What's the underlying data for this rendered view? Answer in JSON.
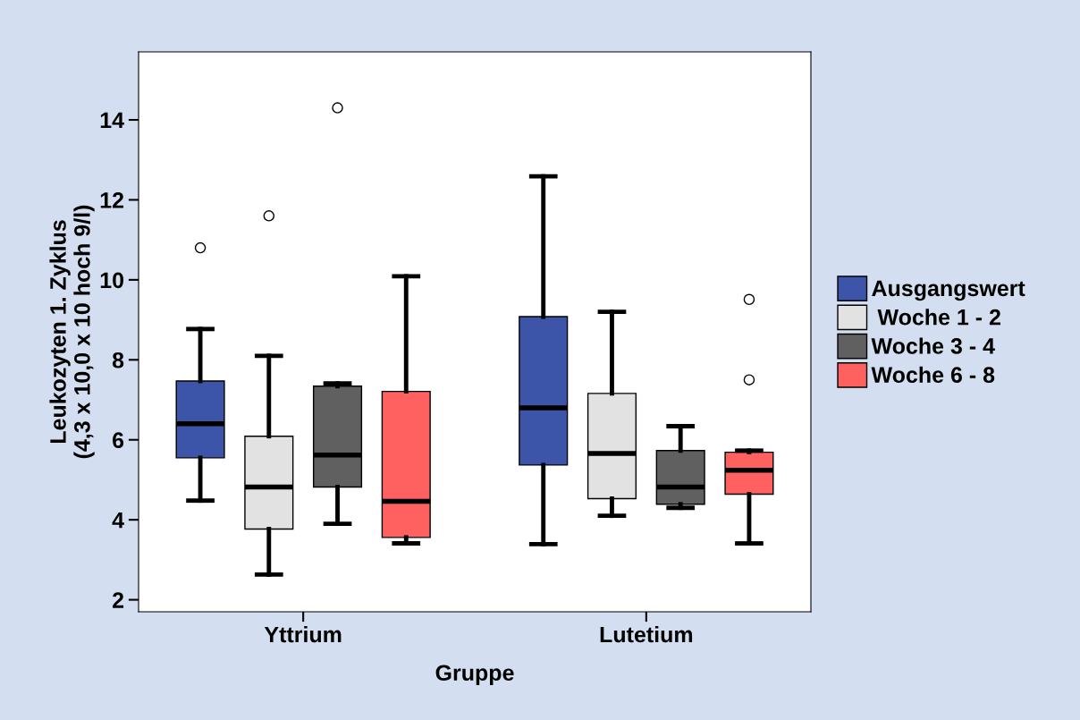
{
  "chart_data": {
    "type": "box",
    "xlabel": "Gruppe",
    "ylabel": "Leukozyten 1. Zyklus\n(4,3 x 10,0 x 10 hoch 9/l)",
    "categories": [
      "Yttrium",
      "Lutetium"
    ],
    "ylim": [
      1.7,
      15.7
    ],
    "yticks": [
      2,
      4,
      6,
      8,
      10,
      12,
      14
    ],
    "grid": false,
    "legend": "right",
    "series": [
      {
        "name": "Ausgangswert",
        "color": "#3c55a8",
        "boxes": [
          {
            "low": 4.48,
            "q1": 5.55,
            "median": 6.4,
            "q3": 7.47,
            "high": 8.77,
            "outliers": [
              10.8
            ]
          },
          {
            "low": 3.39,
            "q1": 5.37,
            "median": 6.8,
            "q3": 9.08,
            "high": 12.59
          }
        ]
      },
      {
        "name": " Woche 1 - 2",
        "color": "#e2e2e2",
        "boxes": [
          {
            "low": 2.63,
            "q1": 3.77,
            "median": 4.82,
            "q3": 6.09,
            "high": 8.1,
            "outliers": [
              11.6
            ]
          },
          {
            "low": 4.1,
            "q1": 4.53,
            "median": 5.66,
            "q3": 7.16,
            "high": 9.2
          }
        ]
      },
      {
        "name": "Woche 3 - 4",
        "color": "#606060",
        "boxes": [
          {
            "low": 3.9,
            "q1": 4.82,
            "median": 5.62,
            "q3": 7.34,
            "high": 7.41,
            "outliers": [
              14.3
            ]
          },
          {
            "low": 4.3,
            "q1": 4.39,
            "median": 4.82,
            "q3": 5.73,
            "high": 6.34
          }
        ]
      },
      {
        "name": "Woche 6 - 8",
        "color": "#ff6060",
        "boxes": [
          {
            "low": 3.41,
            "q1": 3.56,
            "median": 4.46,
            "q3": 7.21,
            "high": 10.09
          },
          {
            "low": 3.41,
            "q1": 4.64,
            "median": 5.24,
            "q3": 5.69,
            "high": 5.73,
            "outliers": [
              7.5,
              9.51
            ]
          }
        ]
      }
    ]
  }
}
